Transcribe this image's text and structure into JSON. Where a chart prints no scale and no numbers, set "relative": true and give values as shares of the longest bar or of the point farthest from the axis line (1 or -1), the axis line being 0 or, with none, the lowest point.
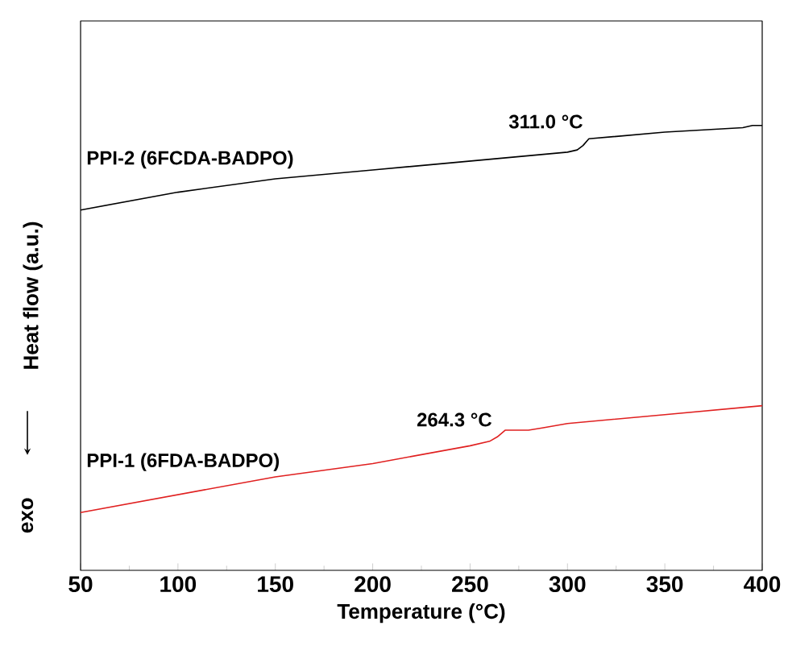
{
  "chart_data": {
    "type": "line",
    "relative": true,
    "xlabel": "Temperature (°C)",
    "ylabel": "Heat flow (a.u.)",
    "xlim": [
      50,
      400
    ],
    "xticks": [
      50,
      100,
      150,
      200,
      250,
      300,
      350,
      400
    ],
    "series": [
      {
        "name": "PPI-2 (6FCDA-BADPO)",
        "color": "#000000",
        "x": [
          50,
          100,
          150,
          200,
          250,
          300,
          305,
          308,
          311,
          350,
          390,
          395,
          400
        ],
        "values": [
          0.81,
          0.85,
          0.88,
          0.9,
          0.92,
          0.94,
          0.945,
          0.955,
          0.97,
          0.985,
          0.995,
          1.0,
          1.0
        ]
      },
      {
        "name": "PPI-1 (6FDA-BADPO)",
        "color": "#e02020",
        "x": [
          50,
          100,
          150,
          200,
          250,
          260,
          264,
          268,
          280,
          287,
          300,
          350,
          400
        ],
        "values": [
          0.13,
          0.17,
          0.21,
          0.24,
          0.28,
          0.29,
          0.3,
          0.315,
          0.315,
          0.32,
          0.33,
          0.35,
          0.37
        ]
      }
    ],
    "annotations": [
      {
        "text": "311.0 °C",
        "x": 311,
        "y": 0.97
      },
      {
        "text": "264.3 °C",
        "x": 264.3,
        "y": 0.3
      },
      "exo"
    ],
    "grid": false,
    "marker": "none",
    "line_style": "solid"
  }
}
